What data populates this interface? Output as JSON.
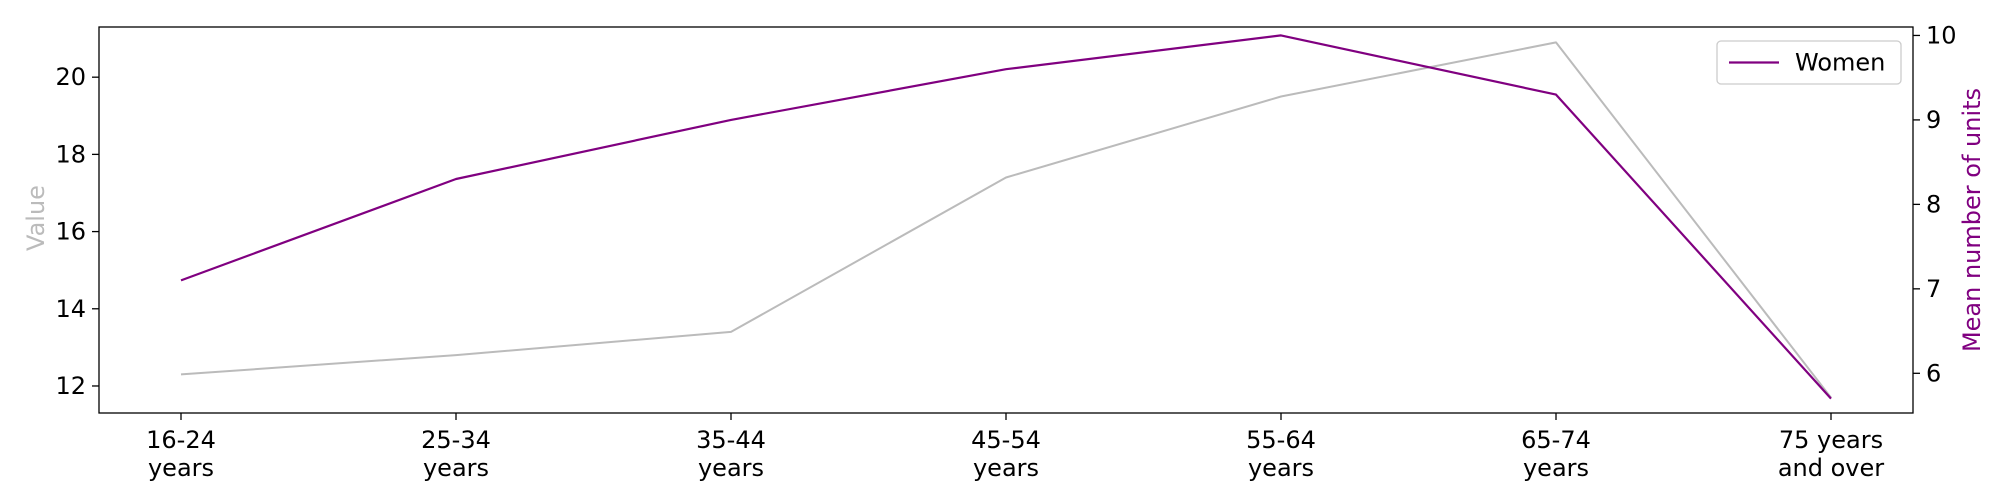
{
  "chart_data": {
    "type": "line",
    "categories": [
      "16-24 years",
      "25-34 years",
      "35-44 years",
      "45-54 years",
      "55-64 years",
      "65-74 years",
      "75 years and over"
    ],
    "category_lines": [
      [
        "16-24",
        "years"
      ],
      [
        "25-34",
        "years"
      ],
      [
        "35-44",
        "years"
      ],
      [
        "45-54",
        "years"
      ],
      [
        "55-64",
        "years"
      ],
      [
        "65-74",
        "years"
      ],
      [
        "75 years",
        "and over"
      ]
    ],
    "left_axis": {
      "label": "Value",
      "label_color": "#bbbbbb",
      "ticks": [
        "12",
        "14",
        "16",
        "18",
        "20"
      ],
      "tick_values": [
        12,
        14,
        16,
        18,
        20
      ],
      "ylim": [
        11.3,
        21.3
      ]
    },
    "right_axis": {
      "label": "Mean number of units",
      "label_color": "#800080",
      "ticks": [
        "6",
        "7",
        "8",
        "9",
        "10"
      ],
      "tick_values": [
        6,
        7,
        8,
        9,
        10
      ],
      "ylim": [
        5.53,
        10.1
      ]
    },
    "series": [
      {
        "axis": "left",
        "color": "#bbbbbb",
        "values": [
          12.3,
          12.8,
          13.4,
          17.4,
          19.5,
          20.9,
          11.7
        ]
      },
      {
        "name": "Women",
        "axis": "right",
        "color": "#800080",
        "values": [
          7.1,
          8.3,
          9.0,
          9.6,
          10.0,
          9.3,
          5.7
        ]
      }
    ],
    "legend": {
      "placement": "top-right",
      "entries": [
        "Women"
      ]
    },
    "grid": false
  }
}
